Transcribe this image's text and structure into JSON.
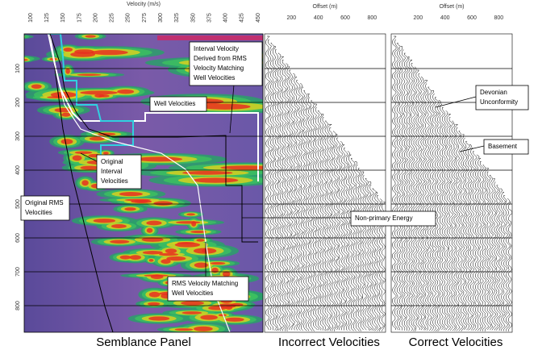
{
  "semblance": {
    "axis_title": "Velocity (m/s)",
    "x_ticks": [
      100,
      125,
      150,
      175,
      200,
      225,
      250,
      275,
      300,
      325,
      350,
      375,
      400,
      425,
      450
    ],
    "y_ticks": [
      100,
      200,
      300,
      400,
      500,
      600,
      700,
      800
    ],
    "caption": "Semblance Panel"
  },
  "gathers": [
    {
      "axis_title": "Offset (m)",
      "ticks": [
        200,
        400,
        600,
        800
      ],
      "caption": "Incorrect Velocities"
    },
    {
      "axis_title": "Offset (m)",
      "ticks": [
        200,
        400,
        600,
        800
      ],
      "caption": "Correct Velocities"
    }
  ],
  "annotations": {
    "interval_derived": [
      "Interval Velocity",
      "Derived from RMS",
      "Velocity Matching",
      "Well Velocities"
    ],
    "well_velocities": [
      "Well Velocities"
    ],
    "original_interval": [
      "Original",
      "Interval",
      "Velocities"
    ],
    "original_rms": [
      "Original RMS",
      "Velocities"
    ],
    "rms_matching": [
      "RMS Velocity Matching",
      "Well Velocities"
    ],
    "devonian": [
      "Devonian",
      "Unconformity"
    ],
    "basement": [
      "Basement"
    ],
    "non_primary": [
      "Non-primary Energy"
    ]
  }
}
